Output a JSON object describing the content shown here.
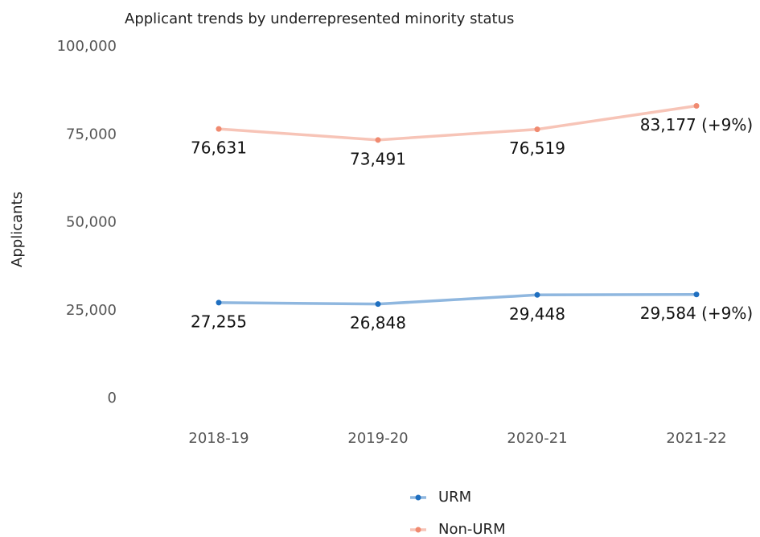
{
  "chart_data": {
    "type": "line",
    "title": "Applicant trends by underrepresented minority status",
    "y_label": "Applicants",
    "categories": [
      "2018-19",
      "2019-20",
      "2020-21",
      "2021-22"
    ],
    "series": [
      {
        "name": "URM",
        "color": "#1f6fc0",
        "values": [
          27255,
          26848,
          29448,
          29584
        ],
        "value_labels": [
          "27,255",
          "26,848",
          "29,448",
          "29,584 (+9%)"
        ]
      },
      {
        "name": "Non-URM",
        "color": "#f08a70",
        "values": [
          76631,
          73491,
          76519,
          83177
        ],
        "value_labels": [
          "76,631",
          "73,491",
          "76,519",
          "83,177 (+9%)"
        ]
      }
    ],
    "ylim": [
      0,
      100000
    ],
    "yticks": [
      0,
      {
        "value": 25000,
        "label": "25,000"
      },
      {
        "value": 50000,
        "label": "50,000"
      },
      {
        "value": 75000,
        "label": "75,000"
      },
      {
        "value": 100000,
        "label": "100,000"
      }
    ],
    "grid": false,
    "legend": "bottom"
  }
}
